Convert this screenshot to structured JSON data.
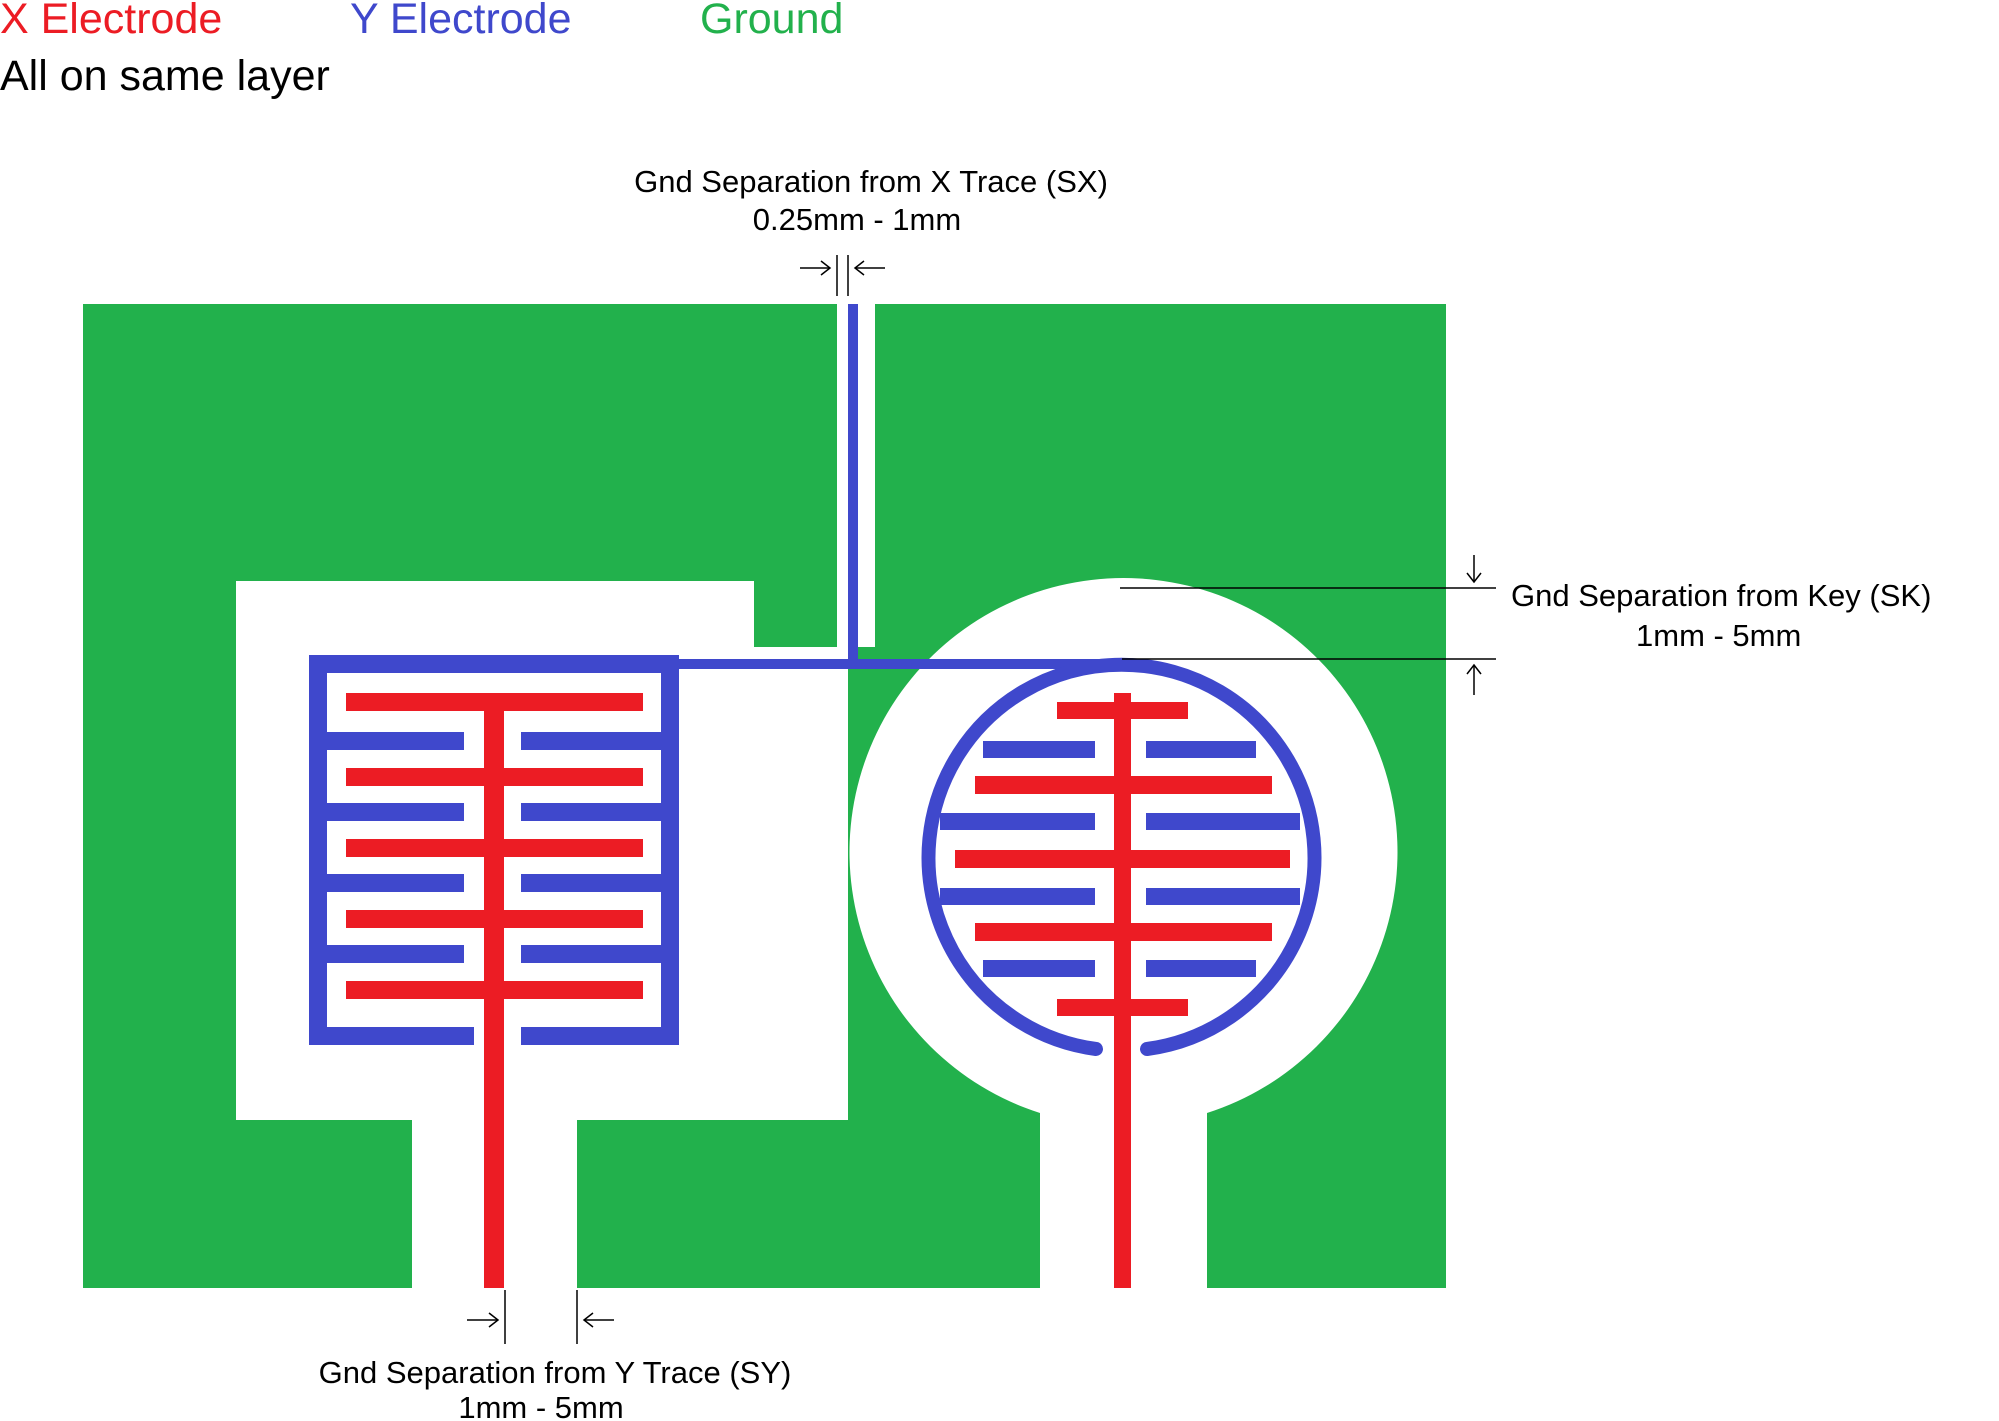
{
  "legend": {
    "x_electrode": "X Electrode",
    "y_electrode": "Y Electrode",
    "ground": "Ground",
    "note": "All on same layer"
  },
  "annotations": {
    "sx_title": "Gnd Separation from X Trace (SX)",
    "sx_range": "0.25mm - 1mm",
    "sk_title": "Gnd Separation from Key (SK)",
    "sk_range": "1mm - 5mm",
    "sy_title": "Gnd Separation from Y Trace (SY)",
    "sy_range": "1mm - 5mm"
  },
  "colors": {
    "x_electrode": "#ec1c24",
    "y_electrode": "#3f48cc",
    "ground": "#22b14c",
    "annotation": "#000000",
    "background": "#ffffff"
  }
}
